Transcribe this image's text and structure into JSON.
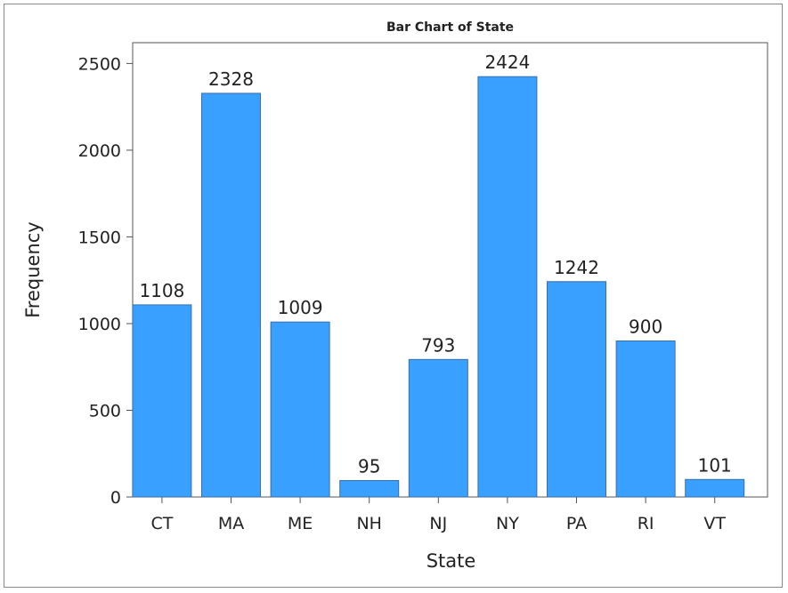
{
  "chart_data": {
    "type": "bar",
    "title": "Bar Chart of State",
    "xlabel": "State",
    "ylabel": "Frequency",
    "categories": [
      "CT",
      "MA",
      "ME",
      "NH",
      "NJ",
      "NY",
      "PA",
      "RI",
      "VT"
    ],
    "values": [
      1108,
      2328,
      1009,
      95,
      793,
      2424,
      1242,
      900,
      101
    ],
    "ylim": [
      0,
      2620
    ],
    "yticks": [
      0,
      500,
      1000,
      1500,
      2000,
      2500
    ],
    "grid": false,
    "legend": "none",
    "bar_color": "#3aa0ff",
    "bar_edge_color": "#3a6ea5"
  }
}
